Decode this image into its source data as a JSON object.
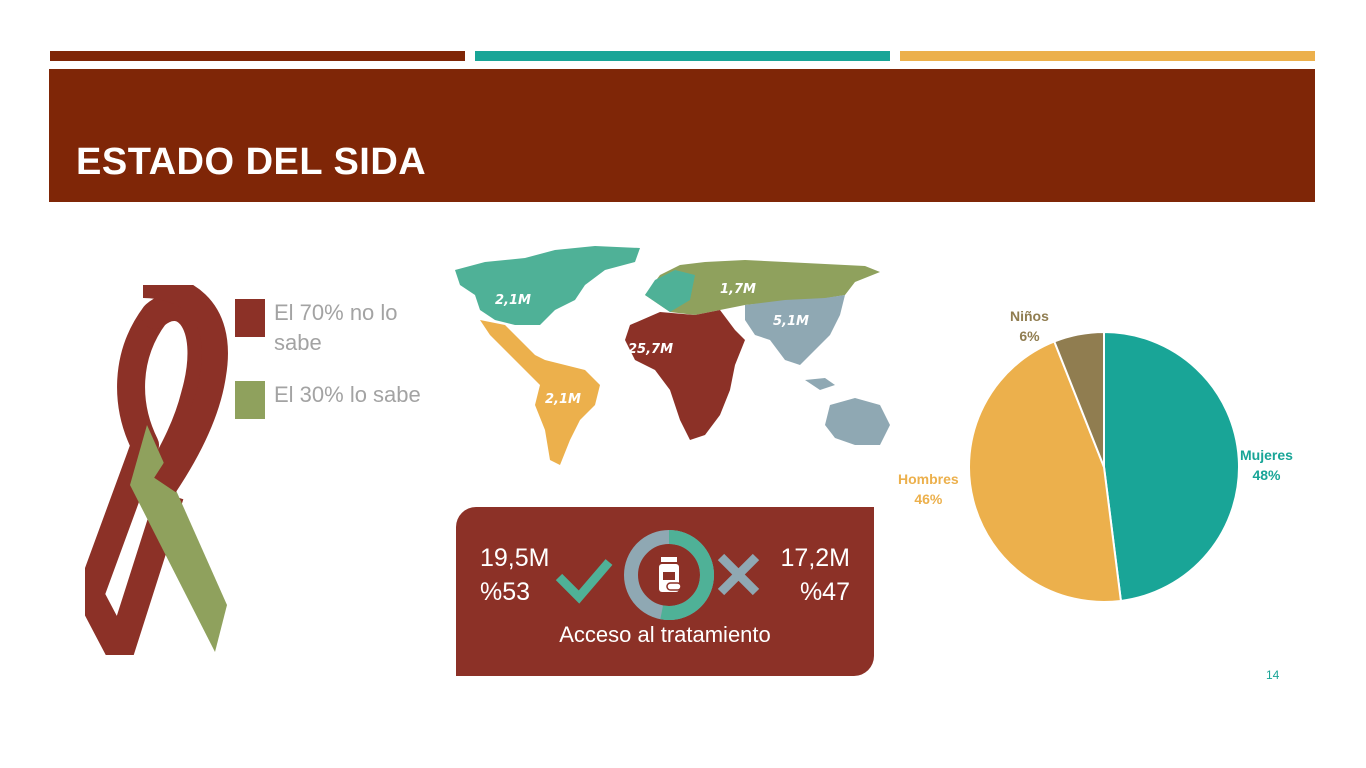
{
  "slide": {
    "title": "ESTADO DEL SIDA",
    "page_number": "14"
  },
  "colors": {
    "dark_red": "#7f2607",
    "ribbon_red": "#8c3127",
    "teal": "#19a597",
    "gold": "#ecb04c",
    "olive": "#8fa15d",
    "brown": "#907d50",
    "gray_blue": "#8fa8b3",
    "map_green": "#4fb197",
    "legend_text": "#a3a3a3"
  },
  "legend": [
    {
      "text": "El 70% no lo sabe",
      "color": "#8c3127"
    },
    {
      "text": "El 30% lo sabe",
      "color": "#8fa15d"
    }
  ],
  "map": {
    "regions": [
      {
        "name": "North America",
        "value": "2,1M",
        "color": "#4fb197"
      },
      {
        "name": "Europe & Central Asia",
        "value": "1,7M",
        "color": "#8fa15d"
      },
      {
        "name": "Asia",
        "value": "5,1M",
        "color": "#8fa8b3"
      },
      {
        "name": "Africa",
        "value": "25,7M",
        "color": "#8c3127"
      },
      {
        "name": "Latin America",
        "value": "2,1M",
        "color": "#ecb04c"
      }
    ]
  },
  "treatment": {
    "with_access_value": "19,5M",
    "with_access_percent": "%53",
    "without_access_value": "17,2M",
    "without_access_percent": "%47",
    "caption": "Acceso al tratamiento",
    "with_fraction": 0.53
  },
  "chart_data": {
    "type": "pie",
    "categories": [
      "Mujeres",
      "Hombres",
      "Niños"
    ],
    "values": [
      48,
      46,
      6
    ],
    "value_labels": [
      "48%",
      "46%",
      "6%"
    ],
    "colors": [
      "#19a597",
      "#ecb04c",
      "#907d50"
    ]
  }
}
